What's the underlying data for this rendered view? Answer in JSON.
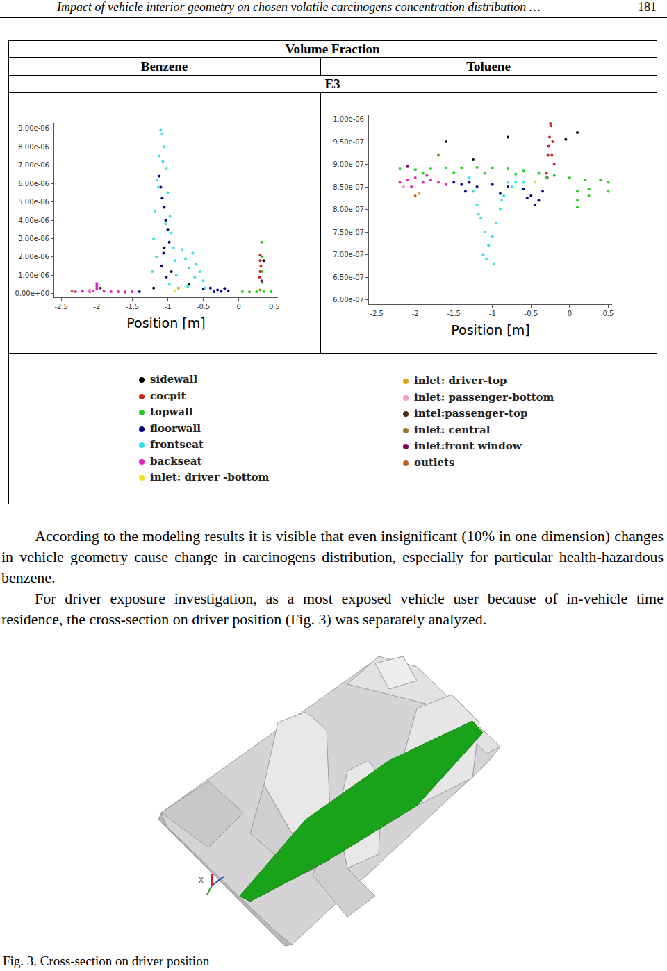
{
  "header": {
    "title": "Impact of vehicle interior geometry on chosen volatile carcinogens concentration distribution …",
    "page": "181"
  },
  "table": {
    "title": "Volume Fraction",
    "case": "E3"
  },
  "chart_data": [
    {
      "type": "scatter",
      "title": "Benzene",
      "xlabel": "Position [m]",
      "xlim": [
        -2.6,
        0.55
      ],
      "xticks": [
        -2.5,
        -2,
        -1.5,
        -1,
        -0.5,
        0,
        0.5
      ],
      "ylim": [
        -2e-07,
        9.3e-06
      ],
      "yticks": [
        {
          "value": 0,
          "label": "0.00e+00"
        },
        {
          "value": 1e-06,
          "label": "1.00e-06"
        },
        {
          "value": 2e-06,
          "label": "2.00e-06"
        },
        {
          "value": 3e-06,
          "label": "3.00e-06"
        },
        {
          "value": 4e-06,
          "label": "4.00e-06"
        },
        {
          "value": 5e-06,
          "label": "5.00e-06"
        },
        {
          "value": 6e-06,
          "label": "6.00e-06"
        },
        {
          "value": 7e-06,
          "label": "7.00e-06"
        },
        {
          "value": 8e-06,
          "label": "8.00e-06"
        },
        {
          "value": 9e-06,
          "label": "9.00e-06"
        }
      ],
      "grid": false,
      "series": [
        {
          "name": "sidewall",
          "color": "#000000",
          "x": [
            -1.05,
            -0.95,
            -0.7,
            0.35,
            -1.2
          ],
          "values": [
            2.5e-06,
            1.2e-06,
            5e-07,
            1.8e-06,
            3e-07
          ]
        },
        {
          "name": "cocpit",
          "color": "#cc2222",
          "x": [
            0.3,
            0.3,
            0.31,
            0.3,
            0.29
          ],
          "values": [
            2.1e-06,
            1.8e-06,
            1.5e-06,
            1.2e-06,
            9e-07
          ]
        },
        {
          "name": "topwall",
          "color": "#22cc22",
          "x": [
            0.05,
            0.15,
            0.25,
            0.35,
            0.45,
            0.33,
            0.33,
            0.33,
            0.32
          ],
          "values": [
            1e-07,
            9e-08,
            1e-07,
            1.1e-07,
            1e-07,
            6e-07,
            1.2e-06,
            2e-06,
            2.8e-06
          ]
        },
        {
          "name": "floorwall",
          "color": "#000080",
          "x": [
            -1.12,
            -1.1,
            -1.08,
            -1.05,
            -1.03,
            -1.0,
            -0.98,
            -1.06,
            -1.09,
            -1.02,
            -0.5,
            -0.4,
            -0.3,
            -0.2,
            -0.15,
            -0.35,
            -0.25,
            -1.6,
            -1.4
          ],
          "values": [
            6.4e-06,
            5.8e-06,
            5.2e-06,
            4.7e-06,
            4e-06,
            3.5e-06,
            2.8e-06,
            2.2e-06,
            1.5e-06,
            9e-07,
            2.5e-07,
            3e-07,
            2e-07,
            2.8e-07,
            1.5e-07,
            1e-07,
            1.2e-07,
            8e-08,
            1e-07
          ]
        },
        {
          "name": "frontseat",
          "color": "#33e0e8",
          "x": [
            -1.2,
            -1.18,
            -1.15,
            -1.12,
            -1.1,
            -1.08,
            -1.05,
            -1.02,
            -1.0,
            -0.97,
            -0.95,
            -0.92,
            -0.9,
            -1.13,
            -1.07,
            -1.16,
            -1.03,
            -0.88,
            -0.8,
            -0.75,
            -0.7,
            -0.65,
            -0.6,
            -0.55,
            -0.5,
            -0.48,
            -0.62,
            -0.72,
            -1.22,
            -0.98
          ],
          "values": [
            3e-06,
            4.5e-06,
            6.2e-06,
            7.5e-06,
            8.9e-06,
            8.7e-06,
            8e-06,
            6.8e-06,
            5.5e-06,
            4.2e-06,
            3.3e-06,
            2.5e-06,
            1.8e-06,
            5.8e-06,
            7.2e-06,
            2e-06,
            3.8e-06,
            1e-06,
            2.4e-06,
            1.9e-06,
            1.4e-06,
            2.2e-06,
            1.6e-06,
            1.2e-06,
            7e-07,
            3e-07,
            9e-07,
            4e-07,
            1.2e-06,
            5e-07
          ]
        },
        {
          "name": "backseat",
          "color": "#e020c0",
          "x": [
            -2.3,
            -2.2,
            -2.1,
            -2.05,
            -2.0,
            -2.0,
            -2.0,
            -1.9,
            -1.8,
            -1.7,
            -1.6,
            -1.5
          ],
          "values": [
            1e-07,
            1.2e-07,
            1e-07,
            1.5e-07,
            2.5e-07,
            4e-07,
            5.5e-07,
            1.2e-07,
            1e-07,
            1e-07,
            9e-08,
            1e-07
          ]
        },
        {
          "name": "inlet: driver -bottom",
          "color": "#f0e020",
          "x": [
            -0.9
          ],
          "values": [
            1.5e-07
          ]
        },
        {
          "name": "inlet: driver-top",
          "color": "#e0a020",
          "x": [
            -0.85
          ],
          "values": [
            3e-07
          ]
        },
        {
          "name": "inlet: passenger-bottom",
          "color": "#f0a0c0",
          "x": [
            -2.1
          ],
          "values": [
            2e-07
          ]
        },
        {
          "name": "intel:passenger-top",
          "color": "#4a2a10",
          "x": [
            -1.95
          ],
          "values": [
            3e-07
          ]
        },
        {
          "name": "inlet: central",
          "color": "#a07820",
          "x": [
            0.3
          ],
          "values": [
            2e-07
          ]
        },
        {
          "name": "inlet:front window",
          "color": "#800060",
          "x": [
            0.32
          ],
          "values": [
            7e-07
          ]
        },
        {
          "name": "outlets",
          "color": "#c06020",
          "x": [
            -2.35
          ],
          "values": [
            1.2e-07
          ]
        }
      ]
    },
    {
      "type": "scatter",
      "title": "Toluene",
      "xlabel": "Position [m]",
      "xlim": [
        -2.6,
        0.55
      ],
      "xticks": [
        -2.5,
        -2,
        -1.5,
        -1,
        -0.5,
        0,
        0.5
      ],
      "ylim": [
        5.9e-07,
        1.01e-06
      ],
      "yticks": [
        {
          "value": 6e-07,
          "label": "6.00e-07"
        },
        {
          "value": 6.5e-07,
          "label": "6.50e-07"
        },
        {
          "value": 7e-07,
          "label": "7.00e-07"
        },
        {
          "value": 7.5e-07,
          "label": "7.50e-07"
        },
        {
          "value": 8e-07,
          "label": "8.00e-07"
        },
        {
          "value": 8.5e-07,
          "label": "8.50e-07"
        },
        {
          "value": 9e-07,
          "label": "9.00e-07"
        },
        {
          "value": 9.5e-07,
          "label": "9.50e-07"
        },
        {
          "value": 1e-06,
          "label": "1.00e-06"
        }
      ],
      "grid": false,
      "series": [
        {
          "name": "sidewall",
          "color": "#000000",
          "x": [
            -0.8,
            -1.25,
            0.1,
            -0.05
          ],
          "values": [
            9.6e-07,
            9.1e-07,
            9.7e-07,
            9.55e-07
          ]
        },
        {
          "name": "cocpit",
          "color": "#cc2222",
          "x": [
            -0.3,
            -0.28,
            -0.26,
            -0.24,
            -0.22,
            -0.2,
            -0.25,
            -0.27,
            -0.23,
            -0.29
          ],
          "values": [
            8.8e-07,
            9.2e-07,
            9.6e-07,
            9.85e-07,
            9.5e-07,
            9e-07,
            9.9e-07,
            9.4e-07,
            9.2e-07,
            8.7e-07
          ]
        },
        {
          "name": "topwall",
          "color": "#22cc22",
          "x": [
            -2.2,
            -2.0,
            -1.8,
            -1.6,
            -1.4,
            -1.2,
            -1.0,
            -0.8,
            -0.6,
            -0.4,
            -0.2,
            0.0,
            0.2,
            0.4,
            0.5,
            -1.9,
            -1.5,
            -1.1,
            -0.7,
            -0.3,
            0.1,
            0.1,
            0.1,
            0.25,
            0.25,
            0.5
          ],
          "values": [
            8.9e-07,
            8.88e-07,
            8.9e-07,
            8.92e-07,
            8.92e-07,
            8.93e-07,
            8.92e-07,
            8.9e-07,
            8.85e-07,
            8.8e-07,
            8.75e-07,
            8.7e-07,
            8.65e-07,
            8.65e-07,
            8.6e-07,
            8.8e-07,
            8.82e-07,
            8.8e-07,
            8.78e-07,
            8.7e-07,
            8.4e-07,
            8.2e-07,
            8.05e-07,
            8.45e-07,
            8.3e-07,
            8.4e-07
          ]
        },
        {
          "name": "floorwall",
          "color": "#000080",
          "x": [
            -1.5,
            -1.4,
            -1.3,
            -1.2,
            -1.0,
            -0.8,
            -0.6,
            -0.5,
            -0.4,
            -0.35,
            -0.45,
            -0.55,
            -1.35,
            -0.9
          ],
          "values": [
            8.6e-07,
            8.55e-07,
            8.6e-07,
            8.5e-07,
            8.55e-07,
            8.5e-07,
            8.45e-07,
            8.3e-07,
            8.2e-07,
            8.4e-07,
            8.1e-07,
            8.25e-07,
            8.4e-07,
            8.35e-07
          ]
        },
        {
          "name": "frontseat",
          "color": "#33e0e8",
          "x": [
            -1.3,
            -1.25,
            -1.2,
            -1.15,
            -1.1,
            -1.05,
            -1.0,
            -0.95,
            -0.9,
            -0.85,
            -0.8,
            -0.75,
            -1.08,
            -1.12,
            -0.98,
            -1.18,
            -0.88,
            -0.7,
            -0.6
          ],
          "values": [
            8.7e-07,
            8.4e-07,
            8.1e-07,
            7.8e-07,
            7.5e-07,
            7.2e-07,
            7.4e-07,
            7.7e-07,
            8e-07,
            8.3e-07,
            8.6e-07,
            8.5e-07,
            6.9e-07,
            7e-07,
            6.8e-07,
            7.9e-07,
            8.2e-07,
            8.6e-07,
            8.6e-07
          ]
        },
        {
          "name": "backseat",
          "color": "#e020c0",
          "x": [
            -2.2,
            -2.1,
            -2.0,
            -1.9,
            -1.8,
            -1.7,
            -1.6,
            -2.05,
            -1.85
          ],
          "values": [
            8.6e-07,
            8.65e-07,
            8.7e-07,
            8.6e-07,
            8.65e-07,
            8.6e-07,
            8.55e-07,
            8.5e-07,
            8.75e-07
          ]
        },
        {
          "name": "inlet: driver -bottom",
          "color": "#f0e020",
          "x": [
            -0.45
          ],
          "values": [
            8.6e-07
          ]
        },
        {
          "name": "inlet: driver-top",
          "color": "#e0a020",
          "x": [
            -1.95
          ],
          "values": [
            8.35e-07
          ]
        },
        {
          "name": "inlet: passenger-bottom",
          "color": "#f0a0c0",
          "x": [
            -2.15
          ],
          "values": [
            8.5e-07
          ]
        },
        {
          "name": "intel:passenger-top",
          "color": "#4a2a10",
          "x": [
            -1.6
          ],
          "values": [
            9.5e-07
          ]
        },
        {
          "name": "inlet: central",
          "color": "#a07820",
          "x": [
            -1.7
          ],
          "values": [
            9.2e-07
          ]
        },
        {
          "name": "inlet:front window",
          "color": "#800060",
          "x": [
            -2.1
          ],
          "values": [
            8.95e-07
          ]
        },
        {
          "name": "outlets",
          "color": "#c06020",
          "x": [
            -2.0
          ],
          "values": [
            8.3e-07
          ]
        }
      ]
    }
  ],
  "paragraphs": [
    "According to the modeling results it is visible that even insignificant (10% in one dimension) changes in vehicle geometry cause change in carcinogens distribution, especially for particular health-hazardous benzene.",
    "For driver exposure investigation, as a most exposed vehicle user because of in-vehicle time residence, the cross-section on driver position (Fig. 3) was separately analyzed."
  ],
  "figure": {
    "axis_label": "X",
    "caption": "Fig. 3. Cross-section on driver position"
  }
}
